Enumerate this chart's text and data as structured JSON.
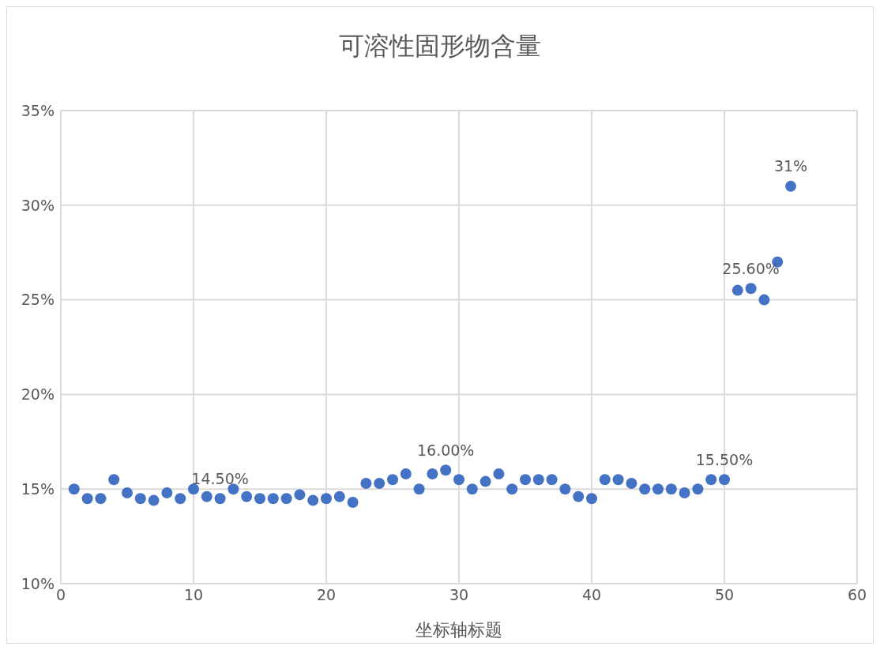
{
  "chart_data": {
    "type": "scatter",
    "title": "可溶性固形物含量",
    "xlabel": "坐标轴标题",
    "x": [
      1,
      2,
      3,
      4,
      5,
      6,
      7,
      8,
      9,
      10,
      11,
      12,
      13,
      14,
      15,
      16,
      17,
      18,
      19,
      20,
      21,
      22,
      23,
      24,
      25,
      26,
      27,
      28,
      29,
      30,
      31,
      32,
      33,
      34,
      35,
      36,
      37,
      38,
      39,
      40,
      41,
      42,
      43,
      44,
      45,
      46,
      47,
      48,
      49,
      50,
      51,
      52,
      53,
      54,
      55
    ],
    "values": [
      15.0,
      14.5,
      14.5,
      15.5,
      14.8,
      14.5,
      14.4,
      14.8,
      14.5,
      15.0,
      14.6,
      14.5,
      15.0,
      14.6,
      14.5,
      14.5,
      14.5,
      14.7,
      14.4,
      14.5,
      14.6,
      14.3,
      15.3,
      15.3,
      15.5,
      15.8,
      15.0,
      15.8,
      16.0,
      15.5,
      15.0,
      15.4,
      15.8,
      15.0,
      15.5,
      15.5,
      15.5,
      15.0,
      14.6,
      14.5,
      15.5,
      15.5,
      15.3,
      15.0,
      15.0,
      15.0,
      14.8,
      15.0,
      15.5,
      15.5,
      25.5,
      25.6,
      25.0,
      27.0,
      31.0
    ],
    "value_labels": [
      null,
      null,
      null,
      null,
      null,
      null,
      null,
      null,
      null,
      null,
      null,
      "14.50%",
      null,
      null,
      null,
      null,
      null,
      null,
      null,
      null,
      null,
      null,
      null,
      null,
      null,
      null,
      null,
      null,
      "16.00%",
      null,
      null,
      null,
      null,
      null,
      null,
      null,
      null,
      null,
      null,
      null,
      null,
      null,
      null,
      null,
      null,
      null,
      null,
      null,
      null,
      "15.50%",
      null,
      "25.60%",
      null,
      null,
      "31%"
    ],
    "color": "#4472c4",
    "marker": "circle",
    "xlim": [
      0,
      60
    ],
    "xticks": [
      0,
      10,
      20,
      30,
      40,
      50,
      60
    ],
    "ylim": [
      10,
      35
    ],
    "yticks": [
      {
        "value": 10,
        "label": "10%"
      },
      {
        "value": 15,
        "label": "15%"
      },
      {
        "value": 20,
        "label": "20%"
      },
      {
        "value": 25,
        "label": "25%"
      },
      {
        "value": 30,
        "label": "30%"
      },
      {
        "value": 35,
        "label": "35%"
      }
    ],
    "grid": true
  }
}
